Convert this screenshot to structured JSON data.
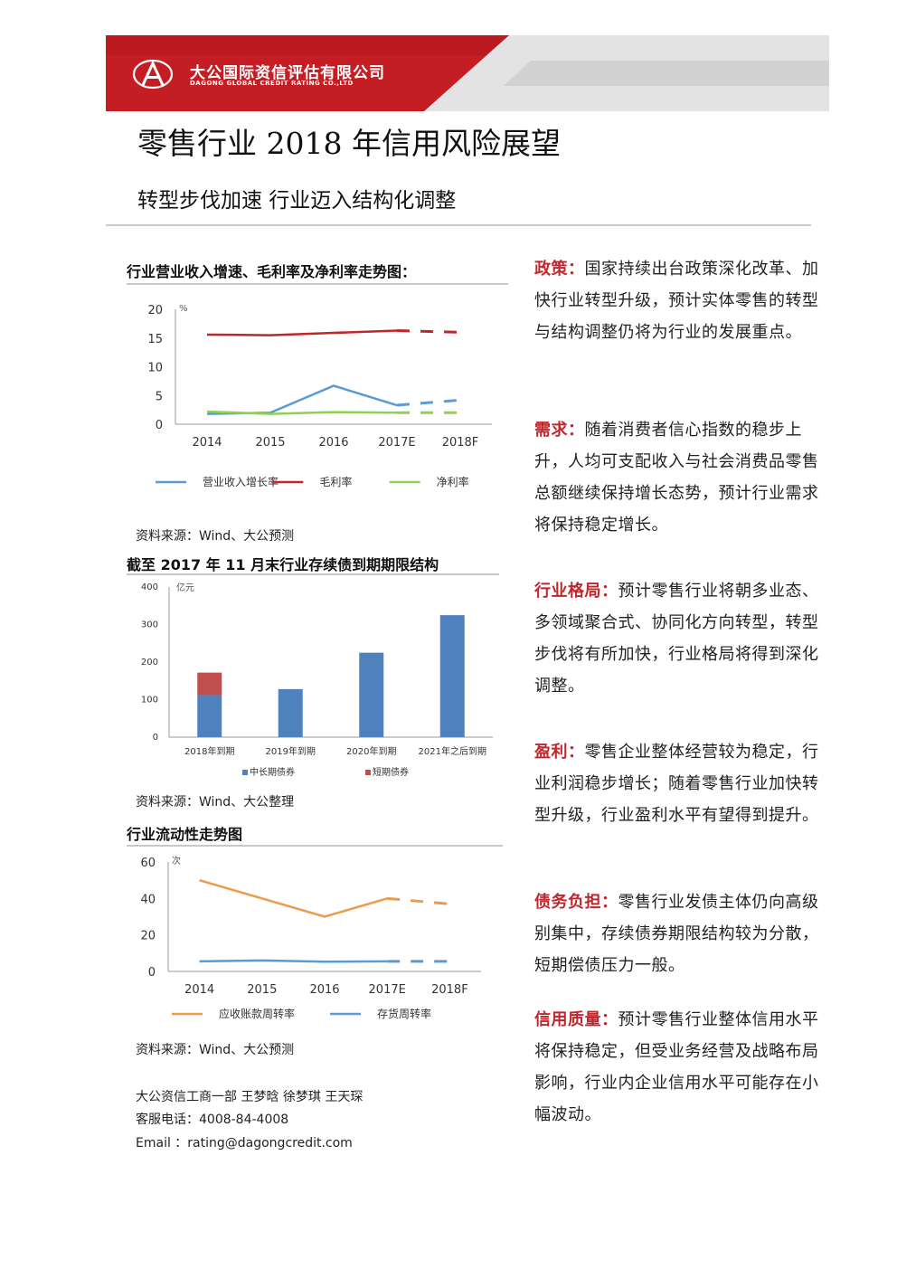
{
  "header": {
    "company_cn": "大公国际资信评估有限公司",
    "company_en": "DAGONG GLOBAL CREDIT RATING CO.,LTD",
    "logo_glyph": "A"
  },
  "title": "零售行业 2018 年信用风险展望",
  "subtitle": "转型步伐加速  行业迈入结构化调整",
  "colors": {
    "brand_red": "#c0272d",
    "blue": "#5b9bd5",
    "red": "#c0272d",
    "green": "#92d050",
    "orange": "#ed9a4c",
    "bar_blue": "#4f81bd",
    "bar_red": "#c0504d"
  },
  "chart1": {
    "section_title": "行业营业收入增速、毛利率及净利率走势图：",
    "source": "资料来源：Wind、大公预测"
  },
  "chart2": {
    "section_title": "截至 2017 年 11 月末行业存续债到期期限结构",
    "source": "资料来源：Wind、大公整理"
  },
  "chart3": {
    "section_title": "行业流动性走势图",
    "source": "资料来源：Wind、大公预测"
  },
  "chart_data": [
    {
      "type": "line",
      "title": "",
      "ylabel": "%",
      "categories": [
        "2014",
        "2015",
        "2016",
        "2017E",
        "2018F"
      ],
      "ylim": [
        0,
        20
      ],
      "yticks": [
        0,
        5,
        10,
        15,
        20
      ],
      "forecast_from_index": 3,
      "series": [
        {
          "name": "营业收入增长率",
          "color": "#5b9bd5",
          "values": [
            1.8,
            2.0,
            6.7,
            3.3,
            4.2
          ]
        },
        {
          "name": "毛利率",
          "color": "#c0272d",
          "values": [
            15.6,
            15.5,
            15.9,
            16.3,
            16.0
          ]
        },
        {
          "name": "净利率",
          "color": "#92d050",
          "values": [
            2.2,
            1.8,
            2.1,
            2.0,
            2.0
          ]
        }
      ]
    },
    {
      "type": "bar",
      "stacked": true,
      "ylabel": "亿元",
      "categories": [
        "2018年到期",
        "2019年到期",
        "2020年到期",
        "2021年之后到期"
      ],
      "ylim": [
        0,
        400
      ],
      "yticks": [
        0,
        100,
        200,
        300,
        400
      ],
      "series": [
        {
          "name": "中长期债券",
          "color": "#4f81bd",
          "values": [
            112,
            128,
            225,
            325
          ]
        },
        {
          "name": "短期债券",
          "color": "#c0504d",
          "values": [
            60,
            0,
            0,
            0
          ]
        }
      ]
    },
    {
      "type": "line",
      "ylabel": "次",
      "categories": [
        "2014",
        "2015",
        "2016",
        "2017E",
        "2018F"
      ],
      "ylim": [
        0,
        60
      ],
      "yticks": [
        0,
        20,
        40,
        60
      ],
      "forecast_from_index": 3,
      "series": [
        {
          "name": "应收账款周转率",
          "color": "#ed9a4c",
          "values": [
            50,
            40,
            30,
            40,
            37
          ]
        },
        {
          "name": "存货周转率",
          "color": "#5b9bd5",
          "values": [
            5.5,
            6.0,
            5.3,
            5.5,
            5.5
          ]
        }
      ]
    }
  ],
  "paragraphs": [
    {
      "label": "政策：",
      "text": "国家持续出台政策深化改革、加快行业转型升级，预计实体零售的转型与结构调整仍将为行业的发展重点。"
    },
    {
      "label": "需求：",
      "text": "随着消费者信心指数的稳步上升，人均可支配收入与社会消费品零售总额继续保持增长态势，预计行业需求将保持稳定增长。"
    },
    {
      "label": "行业格局：",
      "text": "预计零售行业将朝多业态、多领域聚合式、协同化方向转型，转型步伐将有所加快，行业格局将得到深化调整。"
    },
    {
      "label": "盈利：",
      "text": "零售企业整体经营较为稳定，行业利润稳步增长；随着零售行业加快转型升级，行业盈利水平有望得到提升。"
    },
    {
      "label": "债务负担：",
      "text": "零售行业发债主体仍向高级别集中，存续债券期限结构较为分散，短期偿债压力一般。"
    },
    {
      "label": "信用质量：",
      "text": "预计零售行业整体信用水平将保持稳定，但受业务经营及战略布局影响，行业内企业信用水平可能存在小幅波动。"
    }
  ],
  "contact": {
    "team": "大公资信工商一部    王梦晗  徐梦琪  王天琛",
    "phone": "客服电话：4008-84-4008",
    "email": "Email      ：rating@dagongcredit.com"
  }
}
